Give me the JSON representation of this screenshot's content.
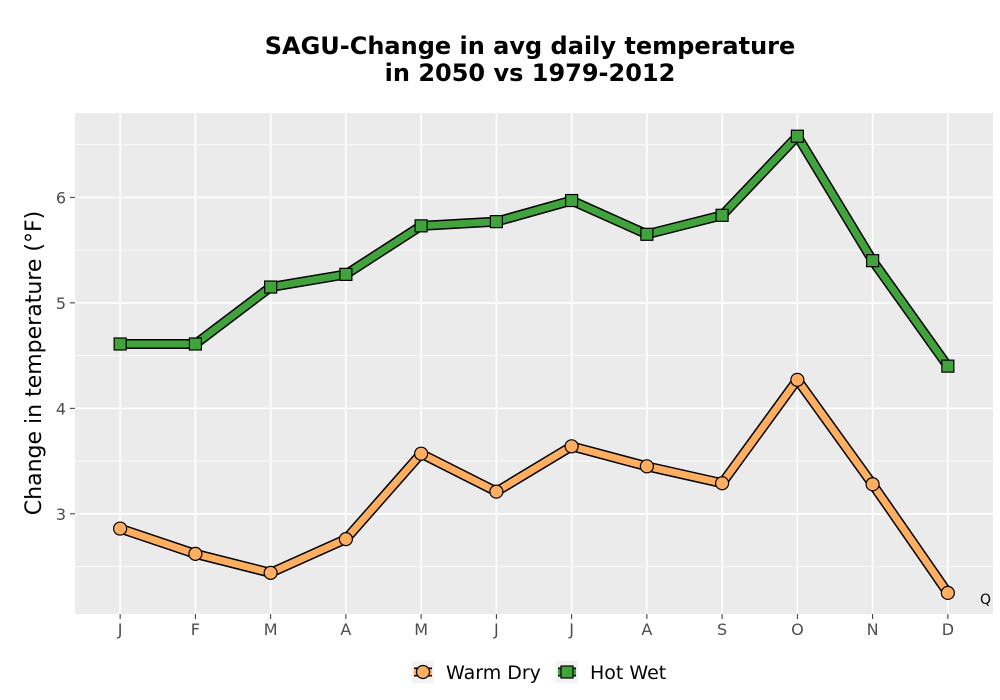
{
  "chart_data": {
    "type": "line",
    "title_line1": "SAGU-Change in avg daily temperature",
    "title_line2": "in 2050 vs 1979-2012",
    "xlabel": "",
    "ylabel": "Change in temperature (°F)",
    "categories": [
      "J",
      "F",
      "M",
      "A",
      "M",
      "J",
      "J",
      "A",
      "S",
      "O",
      "N",
      "D"
    ],
    "yticks": [
      3,
      4,
      5,
      6
    ],
    "ylim": [
      2.05,
      6.8
    ],
    "grid": true,
    "legend_position": "bottom",
    "series": [
      {
        "name": "Warm Dry",
        "marker": "circle",
        "color": "#fdae61",
        "values": [
          2.86,
          2.62,
          2.44,
          2.76,
          3.57,
          3.21,
          3.64,
          3.45,
          3.29,
          4.27,
          3.28,
          2.25
        ]
      },
      {
        "name": "Hot Wet",
        "marker": "square",
        "color": "#41a33b",
        "values": [
          4.61,
          4.61,
          5.15,
          5.27,
          5.73,
          5.77,
          5.97,
          5.65,
          5.83,
          6.58,
          5.4,
          4.4
        ]
      }
    ],
    "corner_mark": "Q"
  },
  "colors": {
    "panel_background": "#ebebeb",
    "grid_line": "#ffffff",
    "outline": "#000000"
  }
}
